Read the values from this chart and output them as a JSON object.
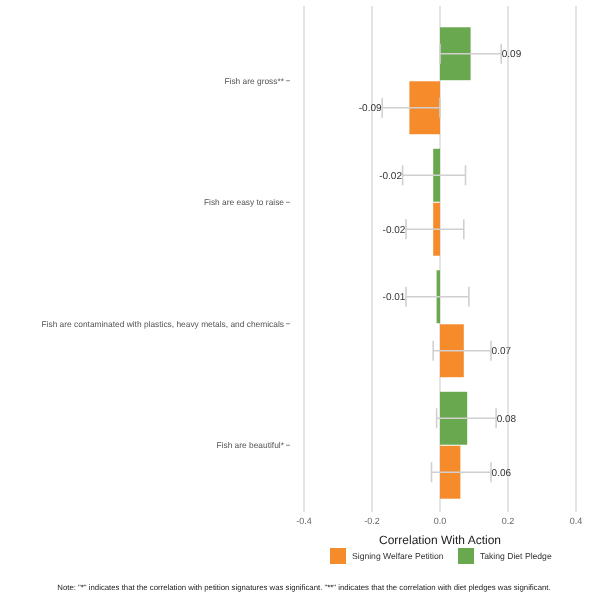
{
  "chart_data": {
    "type": "bar",
    "orientation": "horizontal",
    "categories": [
      "Fish are gross**",
      "Fish are easy to raise",
      "Fish are contaminated with plastics, heavy metals, and chemicals",
      "Fish are beautiful*"
    ],
    "series": [
      {
        "name": "Taking Diet Pledge",
        "color": "#6aa84f",
        "values": [
          0.09,
          -0.02,
          -0.01,
          0.08
        ],
        "errors": [
          [
            0.0,
            0.18
          ],
          [
            -0.11,
            0.075
          ],
          [
            -0.1,
            0.085
          ],
          [
            -0.01,
            0.165
          ]
        ]
      },
      {
        "name": "Signing Welfare Petition",
        "color": "#f68b2c",
        "values": [
          -0.09,
          -0.02,
          0.07,
          0.06
        ],
        "errors": [
          [
            -0.17,
            0.0
          ],
          [
            -0.1,
            0.07
          ],
          [
            -0.02,
            0.15
          ],
          [
            -0.025,
            0.15
          ]
        ]
      }
    ],
    "xlim": [
      -0.4,
      0.4
    ],
    "xticks": [
      {
        "value": -0.4,
        "label": "-0.4"
      },
      {
        "value": -0.2,
        "label": "-0.2"
      },
      {
        "value": 0,
        "label": "0.0"
      },
      {
        "value": 0.2,
        "label": "0.2"
      },
      {
        "value": 0.4,
        "label": "0.4"
      }
    ],
    "xlabel": "Correlation With Action",
    "grid": "x",
    "legend": "bottom",
    "data_labels": true,
    "annotations": [
      "Note: \"*\" indicates that the correlation with petition signatures was significant. \"**\" indicates that the correlation with diet pledges was significant."
    ]
  }
}
